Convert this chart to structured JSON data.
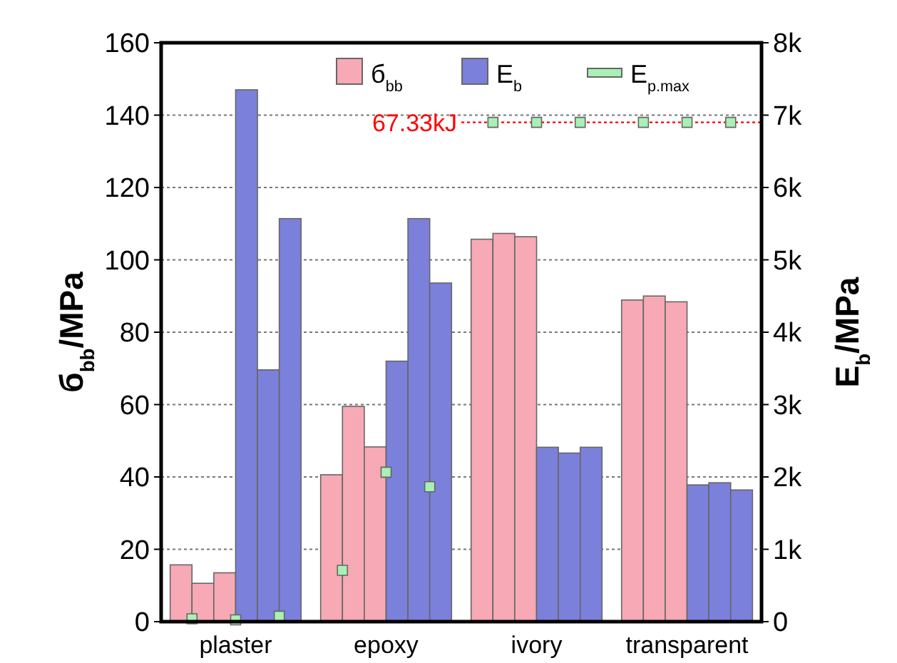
{
  "chart_data": {
    "type": "bar",
    "categories": [
      "plaster",
      "epoxy",
      "ivory",
      "transparent"
    ],
    "ylabel": "б$_{bb}$/MPa",
    "y2label": "E$_{b}$/MPa",
    "ylim": [
      0,
      160
    ],
    "yticks": [
      0,
      20,
      40,
      60,
      80,
      100,
      120,
      140,
      160
    ],
    "y2lim": [
      0,
      8000
    ],
    "y2ticks": [
      0,
      {
        "value": 1000,
        "label": "1k"
      },
      {
        "value": 2000,
        "label": "2k"
      },
      {
        "value": 3000,
        "label": "3k"
      },
      {
        "value": 4000,
        "label": "4k"
      },
      {
        "value": 5000,
        "label": "5k"
      },
      {
        "value": 6000,
        "label": "6k"
      },
      {
        "value": 7000,
        "label": "7k"
      },
      {
        "value": 8000,
        "label": "8k"
      }
    ],
    "grid": "y",
    "legend": "top",
    "series": [
      {
        "name": "б$_{bb}$",
        "color": "#f7a9b5",
        "values": [
          15.7,
          40.6,
          105.7,
          88.9
        ]
      },
      {
        "color": "#f7a9b5",
        "values": [
          10.6,
          59.5,
          107.3,
          90.0
        ]
      },
      {
        "color": "#f7a9b5",
        "values": [
          13.5,
          48.3,
          106.4,
          88.4
        ]
      },
      {
        "name": "E$_{b}$",
        "color": "#7b80da",
        "axis": "y2",
        "values": [
          7350,
          3600,
          2410,
          1890
        ]
      },
      {
        "color": "#7b80da",
        "axis": "y2",
        "values": [
          3480,
          5570,
          2330,
          1920
        ]
      },
      {
        "color": "#7b80da",
        "axis": "y2",
        "values": [
          5570,
          4680,
          2410,
          1820
        ]
      },
      {
        "name": "E$_{p.max}$",
        "type": "scatter",
        "marker": "square",
        "color": "#a9f0b4",
        "values": [
          0.8,
          14.2,
          138,
          138
        ]
      },
      {
        "type": "scatter",
        "marker": "square",
        "color": "#a9f0b4",
        "values": [
          0.5,
          41.3,
          138,
          138
        ]
      },
      {
        "type": "scatter",
        "marker": "square",
        "color": "#a9f0b4",
        "values": [
          1.5,
          37.3,
          138,
          138
        ]
      }
    ],
    "ref_lines": [
      {
        "axis": "y",
        "value": 138,
        "label": "67.33kJ",
        "color": "#ff0000",
        "line_style": "dotted"
      }
    ]
  }
}
